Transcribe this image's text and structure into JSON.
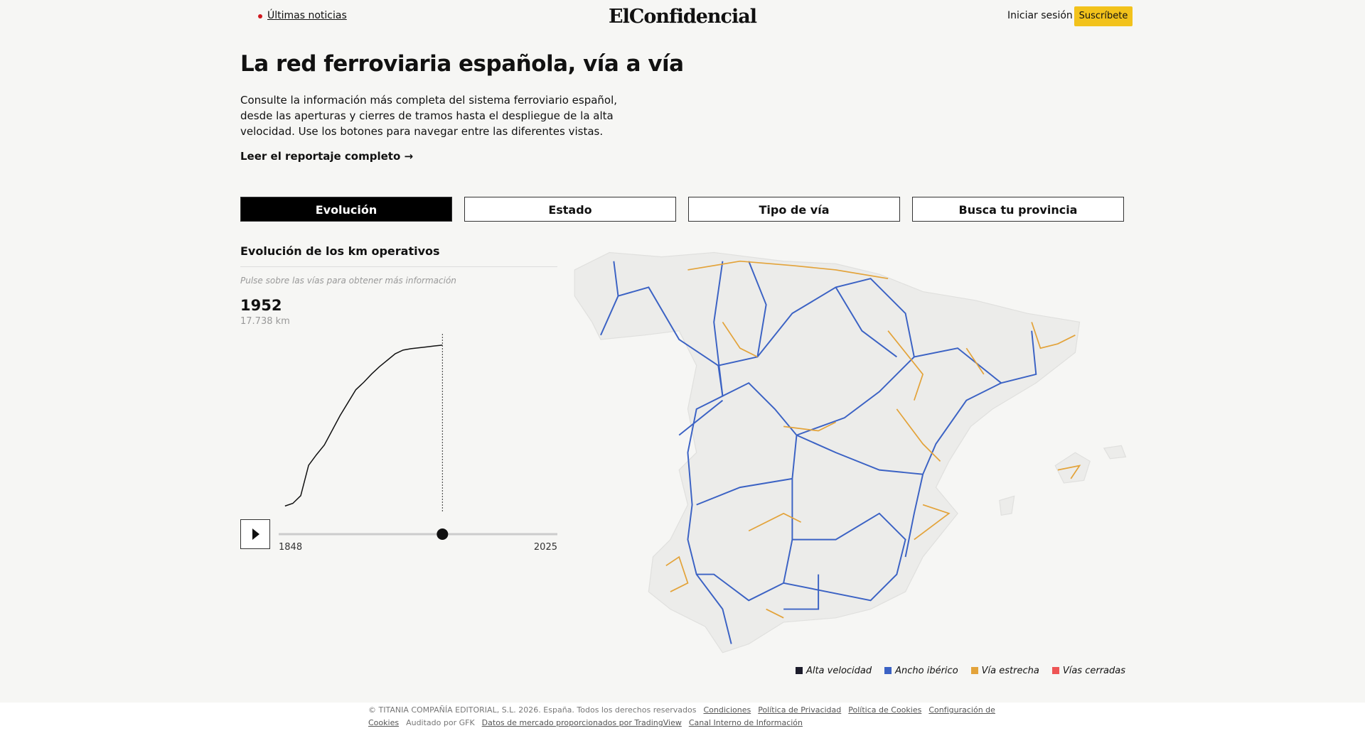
{
  "header": {
    "latest": "Últimas noticias",
    "logo": "ElConfidencial",
    "login": "Iniciar sesión",
    "subscribe": "Suscríbete"
  },
  "intro": {
    "title": "La red ferroviaria española, vía a vía",
    "text": "Consulte la información más completa del sistema ferroviario español, desde las aperturas y cierres de tramos hasta el despliegue de la alta velocidad. Use los botones para navegar entre las diferentes vistas.",
    "link": "Leer el reportaje completo"
  },
  "tabs": [
    "Evolución",
    "Estado",
    "Tipo de vía",
    "Busca tu provincia"
  ],
  "chart_data": {
    "type": "line",
    "title": "Evolución de los km operativos",
    "subtitle": "Pulse sobre las vías para obtener más información",
    "current": {
      "year": 1952,
      "km_label": "17.738 km"
    },
    "x": [
      1852,
      1857,
      1862,
      1867,
      1872,
      1877,
      1882,
      1887,
      1892,
      1897,
      1902,
      1907,
      1912,
      1917,
      1922,
      1927,
      1932,
      1937,
      1942,
      1947,
      1952
    ],
    "values": [
      280,
      570,
      1400,
      4700,
      5850,
      6900,
      8500,
      10100,
      11500,
      12900,
      13700,
      14600,
      15400,
      16100,
      16800,
      17200,
      17350,
      17450,
      17550,
      17650,
      17738
    ],
    "color": "#111111",
    "xlim": [
      1848,
      2025
    ],
    "xticks": [
      1848,
      2025
    ],
    "ylim": [
      0,
      18500
    ]
  },
  "map": {
    "legend": [
      {
        "name": "Alta velocidad",
        "color": "#1c1c2b"
      },
      {
        "name": "Ancho ibérico",
        "color": "#3b62c4"
      },
      {
        "name": "Vía estrecha",
        "color": "#e3a33a"
      },
      {
        "name": "Vías cerradas",
        "color": "#ee5555"
      }
    ]
  },
  "footer": {
    "text": "© TITANIA COMPAÑÍA EDITORIAL, S.L. 2026. España. Todos los derechos reservados",
    "links": [
      "Condiciones",
      "Política de Privacidad",
      "Política de Cookies",
      "Configuración de Cookies"
    ],
    "audit": "Auditado por GFK",
    "links2": [
      "Datos de mercado proporcionados por TradingView",
      "Canal Interno de Información"
    ]
  }
}
